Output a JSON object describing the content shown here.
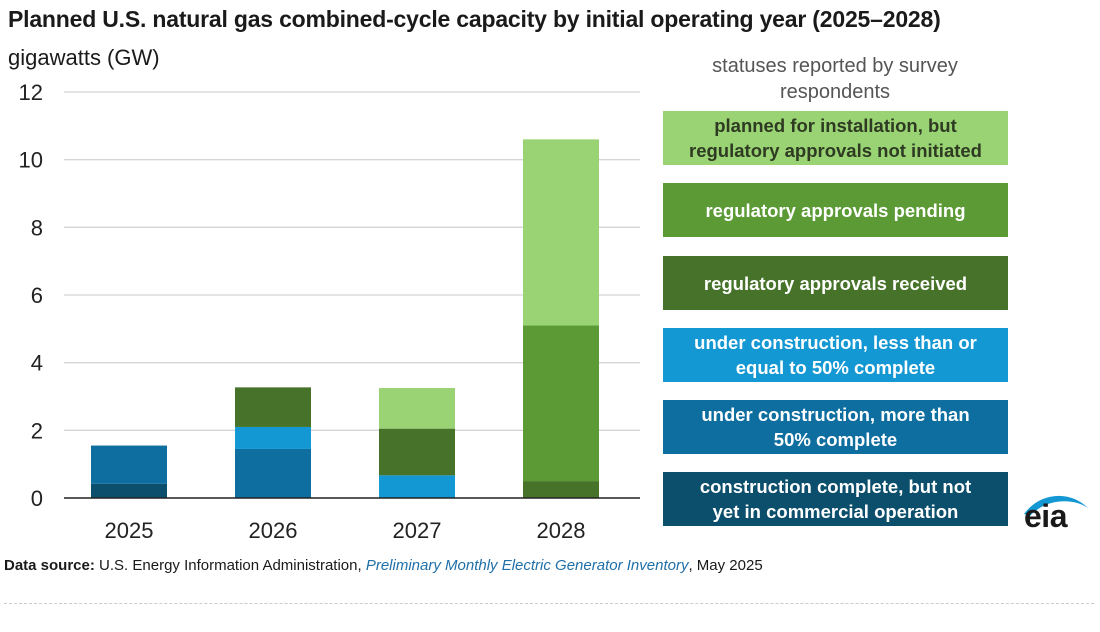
{
  "chart_data": {
    "type": "bar",
    "stacked": true,
    "title": "Planned U.S. natural gas combined-cycle capacity by initial operating year (2025–2028)",
    "unit_label": "gigawatts (GW)",
    "categories": [
      "2025",
      "2026",
      "2027",
      "2028"
    ],
    "ylim": [
      0,
      12
    ],
    "yticks": [
      0,
      2,
      4,
      6,
      8,
      10,
      12
    ],
    "grid": true,
    "legend_title": "statuses reported by survey respondents",
    "legend_placement": "right",
    "series": [
      {
        "name": "construction complete, but not yet in commercial operation",
        "color": "#0b4f6c",
        "text_color": "#ffffff",
        "values": [
          0.42,
          0,
          0,
          0
        ]
      },
      {
        "name": "under construction, more than 50% complete",
        "color": "#0d6e9f",
        "text_color": "#ffffff",
        "values": [
          1.13,
          1.45,
          0,
          0
        ]
      },
      {
        "name": "under construction, less than or equal to 50% complete",
        "color": "#1398d3",
        "text_color": "#ffffff",
        "values": [
          0,
          0.65,
          0.67,
          0
        ]
      },
      {
        "name": "regulatory approvals received",
        "color": "#467329",
        "text_color": "#ffffff",
        "values": [
          0,
          1.17,
          1.38,
          0.5
        ]
      },
      {
        "name": "regulatory approvals pending",
        "color": "#5b9a34",
        "text_color": "#ffffff",
        "values": [
          0,
          0,
          0,
          4.6
        ]
      },
      {
        "name": "planned for installation, but regulatory approvals not initiated",
        "color": "#9ad374",
        "text_color": "#2e3b22",
        "values": [
          0,
          0,
          1.2,
          5.5
        ]
      }
    ]
  },
  "legend_display_lines": [
    [
      "planned for installation, but",
      "regulatory approvals not initiated"
    ],
    [
      "regulatory approvals pending"
    ],
    [
      "regulatory approvals received"
    ],
    [
      "under construction, less than or",
      "equal to 50% complete"
    ],
    [
      "under construction, more than",
      "50% complete"
    ],
    [
      "construction complete, but not",
      "yet in commercial operation"
    ]
  ],
  "source": {
    "label": "Data source:",
    "org": " U.S. Energy Information Administration, ",
    "publication": "Preliminary Monthly Electric Generator Inventory",
    "date": ", May 2025"
  },
  "logo_text": "eia"
}
